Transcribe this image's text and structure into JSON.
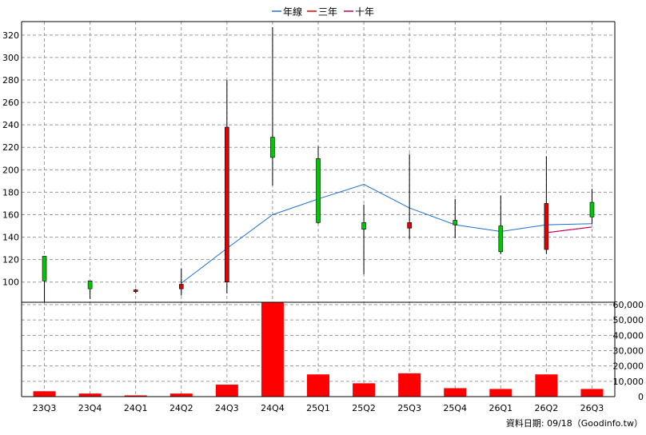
{
  "chart_data": {
    "type": "candlestick",
    "categories": [
      "23Q3",
      "23Q4",
      "24Q1",
      "24Q2",
      "24Q3",
      "24Q4",
      "25Q1",
      "25Q2",
      "25Q3",
      "25Q4",
      "26Q1",
      "26Q2",
      "26Q3"
    ],
    "legend": [
      "年線",
      "三年",
      "十年"
    ],
    "legend_colors": [
      "#1f6fd6",
      "#e00000",
      "#c0005a"
    ],
    "price": {
      "ylim": [
        82,
        332
      ],
      "ticks": [
        100,
        120,
        140,
        160,
        180,
        200,
        220,
        240,
        260,
        280,
        300,
        320
      ],
      "candles": [
        {
          "open": 101,
          "close": 123,
          "high": 123,
          "low": 82
        },
        {
          "open": 94,
          "close": 101,
          "high": 101,
          "low": 85
        },
        {
          "open": 93,
          "close": 92,
          "high": 94,
          "low": 90
        },
        {
          "open": 98,
          "close": 94,
          "high": 112,
          "low": 88
        },
        {
          "open": 238,
          "close": 100,
          "high": 280,
          "low": 90
        },
        {
          "open": 211,
          "close": 229,
          "high": 327,
          "low": 186
        },
        {
          "open": 153,
          "close": 210,
          "high": 221,
          "low": 152
        },
        {
          "open": 147,
          "close": 153,
          "high": 169,
          "low": 107
        },
        {
          "open": 153,
          "close": 148,
          "high": 214,
          "low": 138
        },
        {
          "open": 151,
          "close": 155,
          "high": 174,
          "low": 139
        },
        {
          "open": 127,
          "close": 150,
          "high": 177,
          "low": 125
        },
        {
          "open": 170,
          "close": 129,
          "high": 212,
          "low": 125
        },
        {
          "open": 158,
          "close": 171,
          "high": 183,
          "low": 152
        }
      ],
      "line_year": [
        null,
        null,
        null,
        99,
        130,
        160,
        174,
        187,
        166,
        151,
        145,
        151,
        152
      ],
      "line_3y": [
        null,
        null,
        null,
        null,
        null,
        null,
        null,
        null,
        null,
        null,
        null,
        144,
        149
      ],
      "line_10y": [
        null,
        null,
        null,
        null,
        null,
        null,
        null,
        null,
        null,
        null,
        null,
        144,
        149
      ]
    },
    "volume": {
      "ylim": [
        0,
        60000
      ],
      "ticks": [
        0,
        10000,
        20000,
        30000,
        40000,
        50000,
        60000
      ],
      "tick_labels": [
        "0",
        "10,000",
        "20,000",
        "30,000",
        "40,000",
        "50,000",
        "60,000"
      ],
      "values": [
        3500,
        2000,
        800,
        2000,
        7800,
        61500,
        14500,
        8700,
        15200,
        5500,
        5000,
        14500,
        5000
      ]
    },
    "footer": "資料日期: 09/18（Goodinfo.tw）"
  }
}
